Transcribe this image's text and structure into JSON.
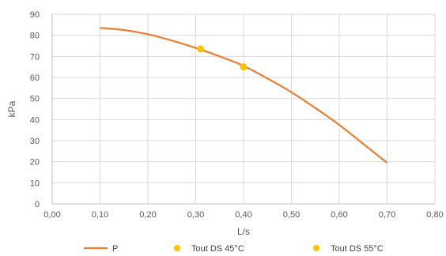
{
  "chart_data": {
    "type": "scatter",
    "title": "",
    "xlabel": "L/s",
    "ylabel": "kPa",
    "xlim": [
      0,
      0.8
    ],
    "ylim": [
      0,
      90
    ],
    "x_ticks": [
      "0,00",
      "0,10",
      "0,20",
      "0,30",
      "0,40",
      "0,50",
      "0,60",
      "0,70",
      "0,80"
    ],
    "y_ticks": [
      "0",
      "10",
      "20",
      "30",
      "40",
      "50",
      "60",
      "70",
      "80",
      "90"
    ],
    "grid": true,
    "legend_position": "bottom",
    "series": [
      {
        "name": "P",
        "kind": "line",
        "color": "#ED7D31",
        "points": [
          [
            0.1,
            83.5
          ],
          [
            0.15,
            82.5
          ],
          [
            0.2,
            80.5
          ],
          [
            0.25,
            77.5
          ],
          [
            0.3,
            74.0
          ],
          [
            0.35,
            70.0
          ],
          [
            0.4,
            65.5
          ],
          [
            0.45,
            59.5
          ],
          [
            0.5,
            53.0
          ],
          [
            0.55,
            45.5
          ],
          [
            0.6,
            37.5
          ],
          [
            0.65,
            28.5
          ],
          [
            0.7,
            19.5
          ]
        ]
      },
      {
        "name": "Tout DS 45°C",
        "kind": "marker",
        "color": "#FFC000",
        "points": [
          [
            0.31,
            73.5
          ]
        ]
      },
      {
        "name": "Tout DS 55°C",
        "kind": "marker",
        "color": "#FFC000",
        "points": [
          [
            0.4,
            65.0
          ]
        ]
      }
    ]
  }
}
